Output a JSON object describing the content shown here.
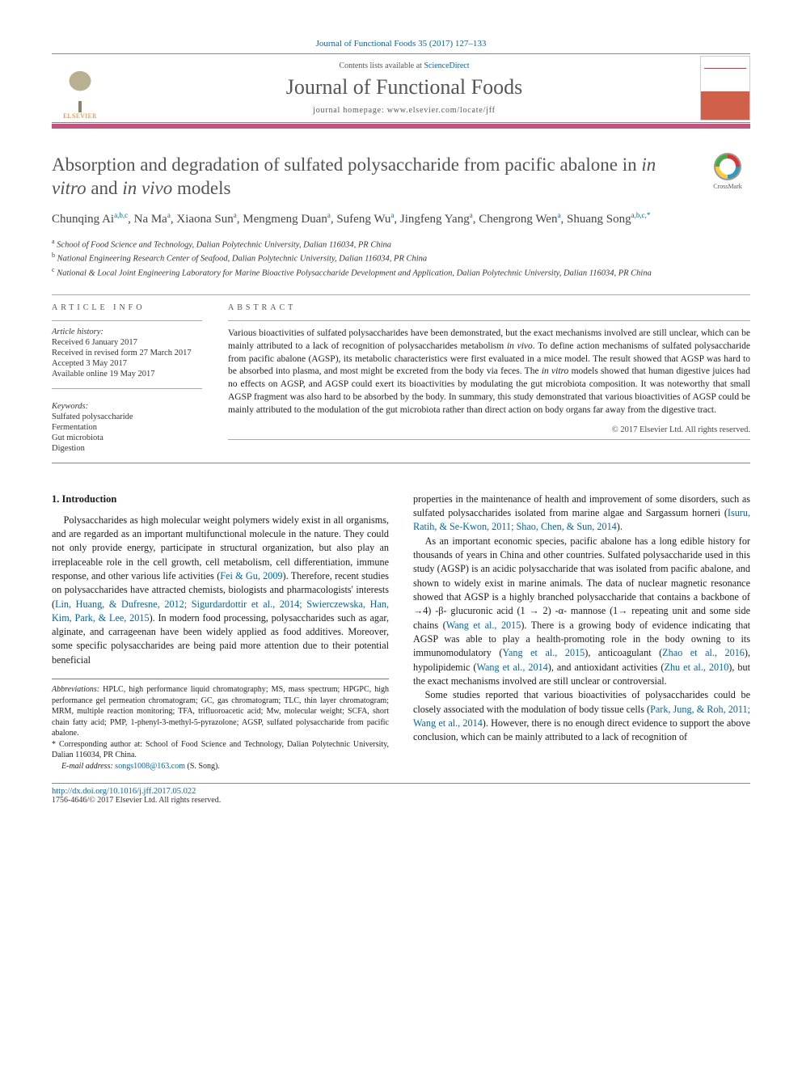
{
  "citation": "Journal of Functional Foods 35 (2017) 127–133",
  "header": {
    "contents_prefix": "Contents lists available at ",
    "contents_link": "ScienceDirect",
    "journal_name": "Journal of Functional Foods",
    "homepage_label": "journal homepage: www.elsevier.com/locate/jff",
    "publisher_label": "ELSEVIER",
    "bar_color": "#c8527d"
  },
  "crossmark_label": "CrossMark",
  "title_pre": "Absorption and degradation of sulfated polysaccharide from pacific abalone in ",
  "title_ital1": "in vitro",
  "title_mid": " and ",
  "title_ital2": "in vivo",
  "title_post": " models",
  "authors_html_parts": {
    "a1": "Chunqing Ai",
    "s1": "a,b,c",
    "a2": "Na Ma",
    "s2": "a",
    "a3": "Xiaona Sun",
    "s3": "a",
    "a4": "Mengmeng Duan",
    "s4": "a",
    "a5": "Sufeng Wu",
    "s5": "a",
    "a6": "Jingfeng Yang",
    "s6": "a",
    "a7": "Chengrong Wen",
    "s7": "a",
    "a8": "Shuang Song",
    "s8": "a,b,c,",
    "s8star": "*"
  },
  "affiliations": {
    "a": "School of Food Science and Technology, Dalian Polytechnic University, Dalian 116034, PR China",
    "b": "National Engineering Research Center of Seafood, Dalian Polytechnic University, Dalian 116034, PR China",
    "c": "National & Local Joint Engineering Laboratory for Marine Bioactive Polysaccharide Development and Application, Dalian Polytechnic University, Dalian 116034, PR China"
  },
  "info": {
    "heading": "ARTICLE INFO",
    "history_label": "Article history:",
    "received": "Received 6 January 2017",
    "revised": "Received in revised form 27 March 2017",
    "accepted": "Accepted 3 May 2017",
    "online": "Available online 19 May 2017",
    "keywords_label": "Keywords:",
    "keywords": [
      "Sulfated polysaccharide",
      "Fermentation",
      "Gut microbiota",
      "Digestion"
    ]
  },
  "abstract": {
    "heading": "ABSTRACT",
    "text_parts": {
      "p1": "Various bioactivities of sulfated polysaccharides have been demonstrated, but the exact mechanisms involved are still unclear, which can be mainly attributed to a lack of recognition of polysaccharides metabolism ",
      "i1": "in vivo",
      "p2": ". To define action mechanisms of sulfated polysaccharide from pacific abalone (AGSP), its metabolic characteristics were first evaluated in a mice model. The result showed that AGSP was hard to be absorbed into plasma, and most might be excreted from the body via feces. The ",
      "i2": "in vitro",
      "p3": " models showed that human digestive juices had no effects on AGSP, and AGSP could exert its bioactivities by modulating the gut microbiota composition. It was noteworthy that small AGSP fragment was also hard to be absorbed by the body. In summary, this study demonstrated that various bioactivities of AGSP could be mainly attributed to the modulation of the gut microbiota rather than direct action on body organs far away from the digestive tract."
    },
    "copyright": "© 2017 Elsevier Ltd. All rights reserved."
  },
  "body": {
    "section_title": "1. Introduction",
    "para1a": "Polysaccharides as high molecular weight polymers widely exist in all organisms, and are regarded as an important multifunctional molecule in the nature. They could not only provide energy, participate in structural organization, but also play an irreplaceable role in the cell growth, cell metabolism, cell differentiation, immune response, and other various life activities (",
    "ref1": "Fei & Gu, 2009",
    "para1b": "). Therefore, recent studies on polysaccharides have attracted chemists, biologists and pharmacologists' interests (",
    "ref2": "Lin, Huang, & Dufresne, 2012; Sigurdardottir et al., 2014; Swierczewska, Han, Kim, Park, & Lee, 2015",
    "para1c": "). In modern food processing, polysaccharides such as agar, alginate, and carrageenan have been widely applied as food additives. Moreover, some specific polysaccharides are being paid more attention due to their potential beneficial",
    "para2a": "properties in the maintenance of health and improvement of some disorders, such as sulfated polysaccharides isolated from marine algae and Sargassum horneri (",
    "ref3": "Isuru, Ratih, & Se-Kwon, 2011; Shao, Chen, & Sun, 2014",
    "para2b": ").",
    "para3a": "As an important economic species, pacific abalone has a long edible history for thousands of years in China and other countries. Sulfated polysaccharide used in this study (AGSP) is an acidic polysaccharide that was isolated from pacific abalone, and shown to widely exist in marine animals. The data of nuclear magnetic resonance showed that AGSP is a highly branched polysaccharide that contains a backbone of →4) -β- glucuronic acid (1 → 2) -α- mannose (1→ repeating unit and some side chains (",
    "ref4": "Wang et al., 2015",
    "para3b": "). There is a growing body of evidence indicating that AGSP was able to play a health-promoting role in the body owning to its immunomodulatory (",
    "ref5": "Yang et al., 2015",
    "para3c": "), anticoagulant (",
    "ref6": "Zhao et al., 2016",
    "para3d": "), hypolipidemic (",
    "ref7": "Wang et al., 2014",
    "para3e": "), and antioxidant activities (",
    "ref8": "Zhu et al., 2010",
    "para3f": "), but the exact mechanisms involved are still unclear or controversial.",
    "para4a": "Some studies reported that various bioactivities of polysaccharides could be closely associated with the modulation of body tissue cells (",
    "ref9": "Park, Jung, & Roh, 2011; Wang et al., 2014",
    "para4b": "). However, there is no enough direct evidence to support the above conclusion, which can be mainly attributed to a lack of recognition of"
  },
  "footnotes": {
    "abbrev_label": "Abbreviations:",
    "abbrev_text": " HPLC, high performance liquid chromatography; MS, mass spectrum; HPGPC, high performance gel permeation chromatogram; GC, gas chromatogram; TLC, thin layer chromatogram; MRM, multiple reaction monitoring; TFA, trifluoroacetic acid; Mw, molecular weight; SCFA, short chain fatty acid; PMP, 1-phenyl-3-methyl-5-pyrazolone; AGSP, sulfated polysaccharide from pacific abalone.",
    "corr_label": "* Corresponding author at: ",
    "corr_text": "School of Food Science and Technology, Dalian Polytechnic University, Dalian 116034, PR China.",
    "email_label": "E-mail address: ",
    "email": "songs1008@163.com",
    "email_suffix": " (S. Song)."
  },
  "bottom": {
    "doi": "http://dx.doi.org/10.1016/j.jff.2017.05.022",
    "issn_line": "1756-4646/© 2017 Elsevier Ltd. All rights reserved."
  },
  "colors": {
    "link": "#0066aa",
    "accent_bar": "#c8527d",
    "title_grey": "#545454",
    "elsevier_orange": "#e67817"
  }
}
